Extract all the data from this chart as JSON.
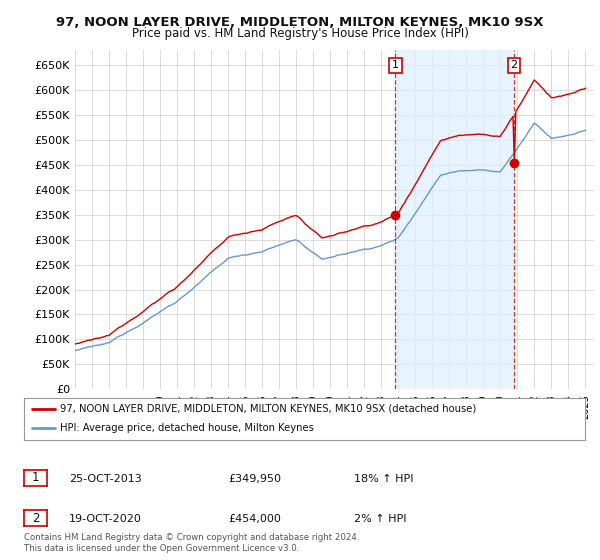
{
  "title": "97, NOON LAYER DRIVE, MIDDLETON, MILTON KEYNES, MK10 9SX",
  "subtitle": "Price paid vs. HM Land Registry's House Price Index (HPI)",
  "legend_line1": "97, NOON LAYER DRIVE, MIDDLETON, MILTON KEYNES, MK10 9SX (detached house)",
  "legend_line2": "HPI: Average price, detached house, Milton Keynes",
  "transaction1_date": "25-OCT-2013",
  "transaction1_price": "£349,950",
  "transaction1_hpi": "18% ↑ HPI",
  "transaction2_date": "19-OCT-2020",
  "transaction2_price": "£454,000",
  "transaction2_hpi": "2% ↑ HPI",
  "footer": "Contains HM Land Registry data © Crown copyright and database right 2024.\nThis data is licensed under the Open Government Licence v3.0.",
  "vline1_x": 2013.82,
  "vline2_x": 2020.8,
  "dot1_x": 2013.82,
  "dot1_y": 349950,
  "dot2_x": 2020.8,
  "dot2_y": 454000,
  "ylim": [
    0,
    680000
  ],
  "xlim": [
    1995.0,
    2025.5
  ],
  "red_color": "#cc0000",
  "blue_color": "#6699cc",
  "fill_color": "#ddeeff",
  "background_color": "#ffffff",
  "grid_color": "#cccccc",
  "vline_color": "#cc0000"
}
